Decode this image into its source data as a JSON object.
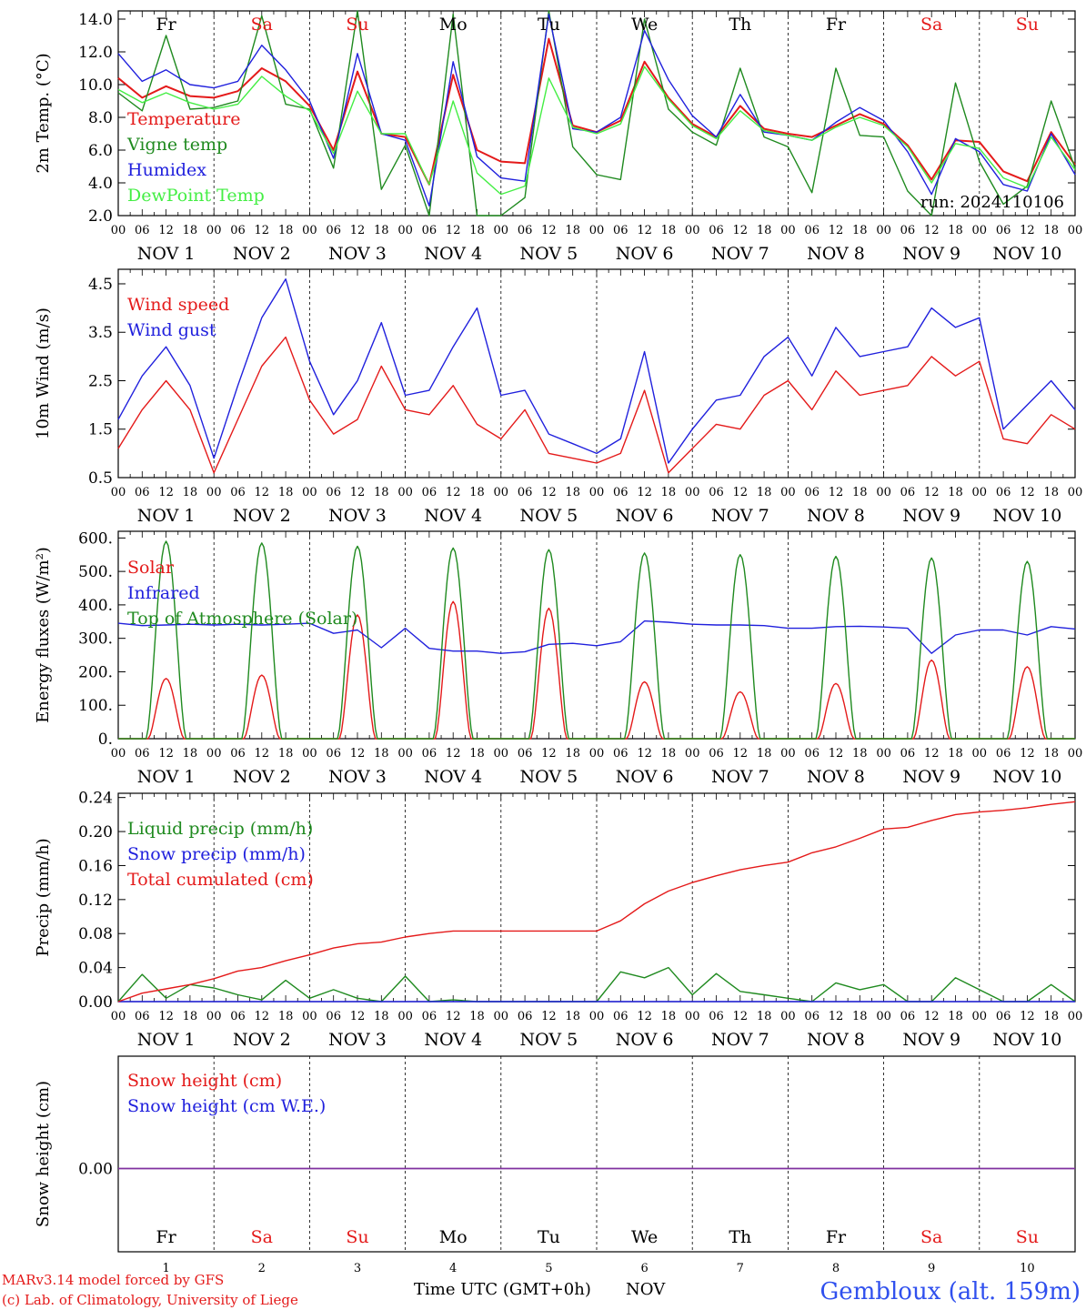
{
  "footer": {
    "model": "MARv3.14 model forced by GFS",
    "credit": "(c) Lab. of Climatology, University of Liege",
    "xlabel": "Time UTC (GMT+0h)",
    "month": "NOV",
    "location": "Gembloux (alt. 159m)"
  },
  "colors": {
    "red": "#e41a1a",
    "green": "#1f8a1f",
    "blue": "#2020dd",
    "lightgreen": "#44ee44",
    "purple": "#8030a0",
    "frame": "#000000"
  },
  "days": {
    "names": [
      "Fr",
      "Sa",
      "Su",
      "Mo",
      "Tu",
      "We",
      "Th",
      "Fr",
      "Sa",
      "Su"
    ],
    "weekend": [
      false,
      true,
      true,
      false,
      false,
      false,
      false,
      false,
      true,
      true
    ],
    "dates": [
      "NOV  1",
      "NOV  2",
      "NOV  3",
      "NOV  4",
      "NOV  5",
      "NOV  6",
      "NOV  7",
      "NOV  8",
      "NOV  9",
      "NOV 10"
    ],
    "numbers": [
      "1",
      "2",
      "3",
      "4",
      "5",
      "6",
      "7",
      "8",
      "9",
      "10"
    ],
    "hours": [
      "00",
      "06",
      "12",
      "18"
    ],
    "end_hour": "00"
  },
  "chart_data": [
    {
      "type": "line",
      "ylabel": "2m Temp. (°C)",
      "ylim": [
        2,
        14.5
      ],
      "yticks": [
        2,
        4,
        6,
        8,
        10,
        12,
        14
      ],
      "ytick_labels": [
        "2.0",
        "4.0",
        "6.0",
        "8.0",
        "10.0",
        "12.0",
        "14.0"
      ],
      "x_unit": "hours since NOV 1 00 UTC",
      "annotation": "run: 2024110106",
      "legend": [
        "Temperature",
        "Vigne temp",
        "Humidex",
        "DewPoint Temp"
      ],
      "series": [
        {
          "name": "Temperature",
          "color": "red",
          "x": [
            0,
            6,
            12,
            18,
            24,
            30,
            36,
            42,
            48,
            54,
            60,
            66,
            72,
            78,
            84,
            90,
            96,
            102,
            108,
            114,
            120,
            126,
            132,
            138,
            144,
            150,
            156,
            162,
            168,
            174,
            180,
            186,
            192,
            198,
            204,
            210,
            216,
            222,
            228,
            234,
            240
          ],
          "y": [
            10.4,
            9.2,
            9.9,
            9.3,
            9.2,
            9.6,
            11.0,
            10.2,
            8.7,
            6.0,
            10.8,
            7.0,
            6.8,
            3.9,
            10.6,
            6.0,
            5.3,
            5.2,
            12.8,
            7.5,
            7.1,
            7.8,
            11.4,
            9.2,
            7.6,
            6.8,
            8.7,
            7.3,
            7.0,
            6.8,
            7.5,
            8.2,
            7.6,
            6.3,
            4.2,
            6.6,
            6.5,
            4.7,
            4.1,
            7.1,
            5.1
          ]
        },
        {
          "name": "Vigne temp",
          "color": "green",
          "x": [
            0,
            6,
            12,
            18,
            24,
            30,
            36,
            42,
            48,
            54,
            60,
            66,
            72,
            78,
            84,
            90,
            96,
            102,
            108,
            114,
            120,
            126,
            132,
            138,
            144,
            150,
            156,
            162,
            168,
            174,
            180,
            186,
            192,
            198,
            204,
            210,
            216,
            222,
            228,
            234,
            240
          ],
          "y": [
            9.5,
            8.4,
            13.0,
            8.5,
            8.6,
            9.0,
            14.2,
            8.8,
            8.5,
            4.9,
            14.9,
            3.6,
            6.3,
            1.4,
            14.3,
            1.4,
            1.4,
            3.1,
            14.5,
            6.2,
            4.5,
            4.2,
            14.0,
            8.5,
            7.1,
            6.3,
            11.0,
            6.8,
            6.2,
            3.4,
            11.0,
            6.9,
            6.8,
            3.5,
            1.6,
            10.1,
            5.3,
            2.7,
            3.8,
            9.0,
            4.9
          ]
        },
        {
          "name": "Humidex",
          "color": "blue",
          "x": [
            0,
            6,
            12,
            18,
            24,
            30,
            36,
            42,
            48,
            54,
            60,
            66,
            72,
            78,
            84,
            90,
            96,
            102,
            108,
            114,
            120,
            126,
            132,
            138,
            144,
            150,
            156,
            162,
            168,
            174,
            180,
            186,
            192,
            198,
            204,
            210,
            216,
            222,
            228,
            234,
            240
          ],
          "y": [
            11.9,
            10.2,
            10.9,
            10.0,
            9.8,
            10.2,
            12.4,
            10.9,
            9.0,
            5.5,
            11.9,
            7.0,
            6.6,
            2.6,
            11.4,
            5.6,
            4.3,
            4.1,
            14.3,
            7.3,
            7.1,
            8.0,
            13.3,
            10.3,
            8.1,
            6.8,
            9.4,
            7.1,
            6.9,
            6.6,
            7.7,
            8.6,
            7.8,
            5.9,
            3.3,
            6.7,
            5.9,
            3.9,
            3.5,
            7.0,
            4.5
          ]
        },
        {
          "name": "DewPoint Temp",
          "color": "lightgreen",
          "x": [
            0,
            6,
            12,
            18,
            24,
            30,
            36,
            42,
            48,
            54,
            60,
            66,
            72,
            78,
            84,
            90,
            96,
            102,
            108,
            114,
            120,
            126,
            132,
            138,
            144,
            150,
            156,
            162,
            168,
            174,
            180,
            186,
            192,
            198,
            204,
            210,
            216,
            222,
            228,
            234,
            240
          ],
          "y": [
            9.7,
            8.9,
            9.5,
            8.9,
            8.5,
            8.8,
            10.5,
            9.3,
            8.4,
            5.8,
            9.6,
            7.0,
            7.0,
            3.9,
            9.0,
            4.6,
            3.3,
            3.8,
            10.4,
            7.4,
            7.0,
            7.6,
            11.1,
            9.1,
            7.5,
            6.7,
            8.4,
            7.2,
            6.9,
            6.6,
            7.4,
            8.0,
            7.5,
            6.2,
            4.0,
            6.4,
            6.1,
            4.3,
            3.7,
            6.8,
            4.8
          ]
        }
      ]
    },
    {
      "type": "line",
      "ylabel": "10m Wind (m/s)",
      "ylim": [
        0.5,
        4.8
      ],
      "yticks": [
        0.5,
        1.5,
        2.5,
        3.5,
        4.5
      ],
      "ytick_labels": [
        "0.5",
        "1.5",
        "2.5",
        "3.5",
        "4.5"
      ],
      "x_unit": "hours since NOV 1 00 UTC",
      "legend": [
        "Wind speed",
        "Wind gust"
      ],
      "series": [
        {
          "name": "Wind speed",
          "color": "red",
          "x": [
            0,
            6,
            12,
            18,
            24,
            30,
            36,
            42,
            48,
            54,
            60,
            66,
            72,
            78,
            84,
            90,
            96,
            102,
            108,
            114,
            120,
            126,
            132,
            138,
            144,
            150,
            156,
            162,
            168,
            174,
            180,
            186,
            192,
            198,
            204,
            210,
            216,
            222,
            228,
            234,
            240
          ],
          "y": [
            1.1,
            1.9,
            2.5,
            1.9,
            0.6,
            1.7,
            2.8,
            3.4,
            2.1,
            1.4,
            1.7,
            2.8,
            1.9,
            1.8,
            2.4,
            1.6,
            1.3,
            1.9,
            1.0,
            0.9,
            0.8,
            1.0,
            2.3,
            0.6,
            1.1,
            1.6,
            1.5,
            2.2,
            2.5,
            1.9,
            2.7,
            2.2,
            2.3,
            2.4,
            3.0,
            2.6,
            2.9,
            1.3,
            1.2,
            1.8,
            1.5
          ]
        },
        {
          "name": "Wind gust",
          "color": "blue",
          "x": [
            0,
            6,
            12,
            18,
            24,
            30,
            36,
            42,
            48,
            54,
            60,
            66,
            72,
            78,
            84,
            90,
            96,
            102,
            108,
            114,
            120,
            126,
            132,
            138,
            144,
            150,
            156,
            162,
            168,
            174,
            180,
            186,
            192,
            198,
            204,
            210,
            216,
            222,
            228,
            234,
            240
          ],
          "y": [
            1.7,
            2.6,
            3.2,
            2.4,
            0.9,
            2.4,
            3.8,
            4.6,
            2.9,
            1.8,
            2.5,
            3.7,
            2.2,
            2.3,
            3.2,
            4.0,
            2.2,
            2.3,
            1.4,
            1.2,
            1.0,
            1.3,
            3.1,
            0.8,
            1.5,
            2.1,
            2.2,
            3.0,
            3.4,
            2.6,
            3.6,
            3.0,
            3.1,
            3.2,
            4.0,
            3.6,
            3.8,
            1.5,
            2.0,
            2.5,
            1.9
          ]
        }
      ]
    },
    {
      "type": "line",
      "ylabel": "Energy fluxes (W/m²)",
      "ylim": [
        0,
        620
      ],
      "yticks": [
        0,
        100,
        200,
        300,
        400,
        500,
        600
      ],
      "ytick_labels": [
        "0.",
        "100.",
        "200.",
        "300.",
        "400.",
        "500.",
        "600."
      ],
      "x_unit": "hours since NOV 1 00 UTC",
      "legend": [
        "Solar",
        "Infrared",
        "Top of Atmosphere (Solar)"
      ],
      "series": [
        {
          "name": "Solar",
          "color": "red",
          "peak_hours": [
            12,
            36,
            60,
            84,
            108,
            132,
            156,
            180,
            204,
            228
          ],
          "peaks": [
            180,
            190,
            370,
            410,
            390,
            170,
            140,
            165,
            235,
            215
          ],
          "daylight_hours": [
            7.5,
            16.5
          ]
        },
        {
          "name": "Infrared",
          "color": "blue",
          "x": [
            0,
            6,
            12,
            18,
            24,
            30,
            36,
            42,
            48,
            54,
            60,
            66,
            72,
            78,
            84,
            90,
            96,
            102,
            108,
            114,
            120,
            126,
            132,
            138,
            144,
            150,
            156,
            162,
            168,
            174,
            180,
            186,
            192,
            198,
            204,
            210,
            216,
            222,
            228,
            234,
            240
          ],
          "y": [
            345,
            338,
            340,
            342,
            340,
            342,
            340,
            342,
            345,
            315,
            325,
            272,
            330,
            270,
            262,
            262,
            255,
            260,
            282,
            285,
            278,
            290,
            352,
            348,
            342,
            340,
            340,
            338,
            330,
            330,
            335,
            336,
            334,
            330,
            255,
            310,
            325,
            325,
            310,
            335,
            328
          ]
        },
        {
          "name": "Top of Atmosphere (Solar)",
          "color": "green",
          "peak_hours": [
            12,
            36,
            60,
            84,
            108,
            132,
            156,
            180,
            204,
            228
          ],
          "peaks": [
            590,
            585,
            575,
            570,
            565,
            555,
            550,
            545,
            540,
            530
          ],
          "daylight_hours": [
            7,
            17
          ]
        }
      ]
    },
    {
      "type": "line",
      "ylabel": "Precip (mm/h)",
      "ylim": [
        0,
        0.245
      ],
      "yticks": [
        0,
        0.04,
        0.08,
        0.12,
        0.16,
        0.2,
        0.24
      ],
      "ytick_labels": [
        "0.00",
        "0.04",
        "0.08",
        "0.12",
        "0.16",
        "0.20",
        "0.24"
      ],
      "x_unit": "hours since NOV 1 00 UTC",
      "legend": [
        "Liquid precip (mm/h)",
        "Snow precip (mm/h)",
        "Total cumulated (cm)"
      ],
      "series": [
        {
          "name": "Liquid precip (mm/h)",
          "color": "green",
          "x": [
            0,
            6,
            12,
            18,
            24,
            30,
            36,
            42,
            48,
            54,
            60,
            66,
            72,
            78,
            84,
            90,
            96,
            102,
            108,
            114,
            120,
            126,
            132,
            138,
            144,
            150,
            156,
            162,
            168,
            174,
            180,
            186,
            192,
            198,
            204,
            210,
            216,
            222,
            228,
            234,
            240
          ],
          "y": [
            0.0,
            0.032,
            0.004,
            0.02,
            0.016,
            0.008,
            0.002,
            0.025,
            0.004,
            0.014,
            0.004,
            0.0,
            0.03,
            0.0,
            0.002,
            0.0,
            0.0,
            0.0,
            0.0,
            0.0,
            0.0,
            0.035,
            0.028,
            0.04,
            0.008,
            0.033,
            0.012,
            0.008,
            0.004,
            0.0,
            0.022,
            0.014,
            0.02,
            0.0,
            0.0,
            0.028,
            0.014,
            0.0,
            0.0,
            0.02,
            0.0
          ]
        },
        {
          "name": "Snow precip (mm/h)",
          "color": "blue",
          "x": [
            0,
            240
          ],
          "y": [
            0.0,
            0.0
          ]
        },
        {
          "name": "Total cumulated (cm)",
          "color": "red",
          "x": [
            0,
            6,
            12,
            18,
            24,
            30,
            36,
            42,
            48,
            54,
            60,
            66,
            72,
            78,
            84,
            90,
            96,
            102,
            108,
            114,
            120,
            126,
            132,
            138,
            144,
            150,
            156,
            162,
            168,
            174,
            180,
            186,
            192,
            198,
            204,
            210,
            216,
            222,
            228,
            234,
            240
          ],
          "y": [
            0.0,
            0.01,
            0.015,
            0.02,
            0.027,
            0.036,
            0.04,
            0.048,
            0.055,
            0.063,
            0.068,
            0.07,
            0.076,
            0.08,
            0.083,
            0.083,
            0.083,
            0.083,
            0.083,
            0.083,
            0.083,
            0.095,
            0.115,
            0.13,
            0.14,
            0.148,
            0.155,
            0.16,
            0.164,
            0.175,
            0.182,
            0.192,
            0.203,
            0.205,
            0.213,
            0.22,
            0.223,
            0.225,
            0.228,
            0.232,
            0.235
          ]
        }
      ]
    },
    {
      "type": "line",
      "ylabel": "Snow height (cm)",
      "ytick_labels": [
        "0.00"
      ],
      "x_unit": "hours since NOV 1 00 UTC",
      "legend": [
        "Snow height (cm)",
        "Snow height (cm W.E.)"
      ],
      "series": [
        {
          "name": "Snow height (cm)",
          "color": "red",
          "x": [
            0,
            240
          ],
          "y": [
            0,
            0
          ]
        },
        {
          "name": "Snow height (cm W.E.)",
          "color": "blue",
          "x": [
            0,
            240
          ],
          "y": [
            0,
            0
          ]
        }
      ]
    }
  ]
}
